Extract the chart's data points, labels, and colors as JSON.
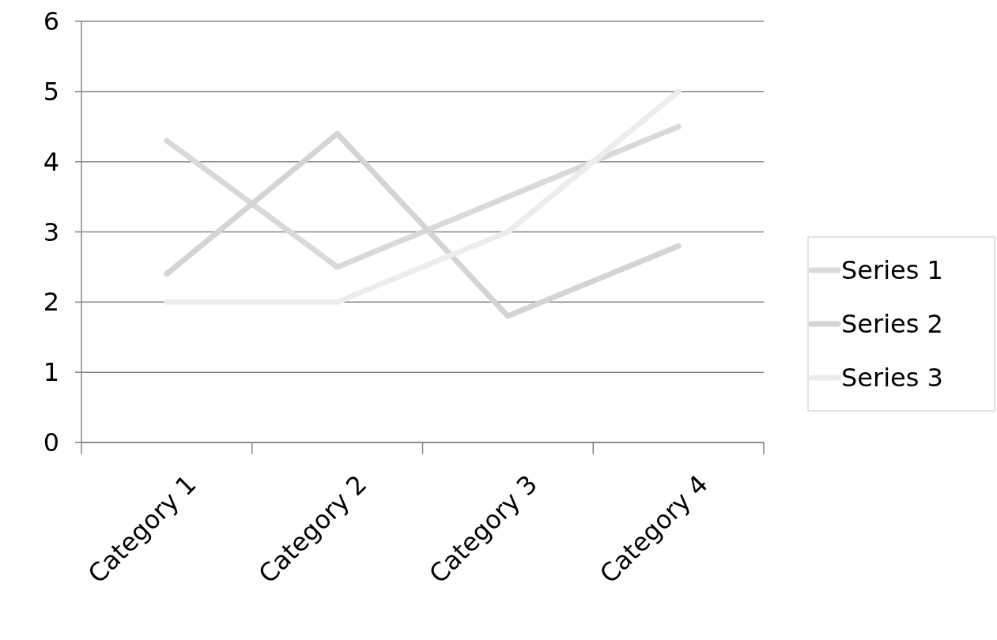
{
  "chart_data": {
    "type": "line",
    "categories": [
      "Category 1",
      "Category 2",
      "Category 3",
      "Category 4"
    ],
    "series": [
      {
        "name": "Series 1",
        "color": "#d9d9d9",
        "values": [
          4.3,
          2.5,
          3.5,
          4.5
        ]
      },
      {
        "name": "Series 2",
        "color": "#d4d4d4",
        "values": [
          2.4,
          4.4,
          1.8,
          2.8
        ]
      },
      {
        "name": "Series 3",
        "color": "#ececec",
        "values": [
          2,
          2,
          3,
          5
        ]
      }
    ],
    "ylim": [
      0,
      6
    ],
    "yticks": [
      0,
      1,
      2,
      3,
      4,
      5,
      6
    ],
    "grid": "y",
    "legend": "right",
    "marker": "none",
    "line_style": "solid"
  }
}
